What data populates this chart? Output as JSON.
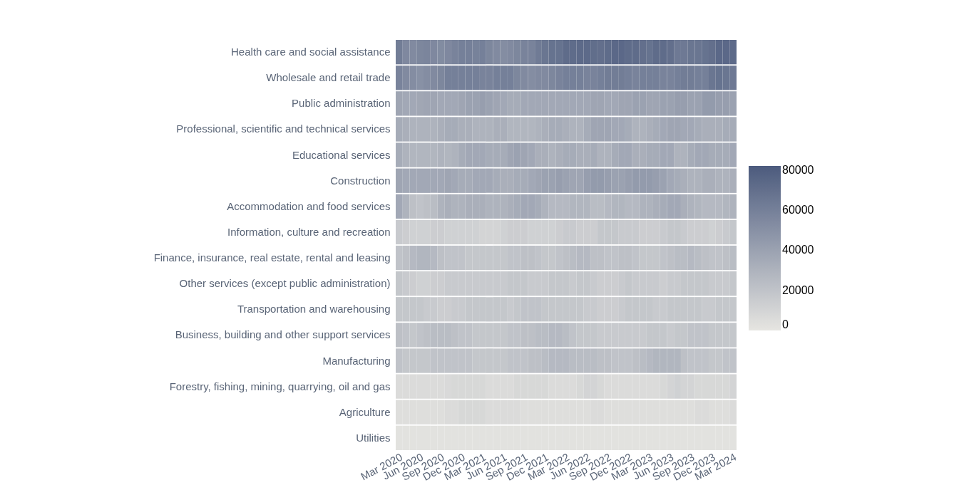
{
  "chart_data": {
    "type": "heatmap",
    "categories": [
      "Mar 2020",
      null,
      null,
      "Jun 2020",
      null,
      null,
      "Sep 2020",
      null,
      null,
      "Dec 2020",
      null,
      null,
      "Mar 2021",
      null,
      null,
      "Jun 2021",
      null,
      null,
      "Sep 2021",
      null,
      null,
      "Dec 2021",
      null,
      null,
      "Mar 2022",
      null,
      null,
      "Jun 2022",
      null,
      null,
      "Sep 2022",
      null,
      null,
      "Dec 2022",
      null,
      null,
      "Mar 2023",
      null,
      null,
      "Jun 2023",
      null,
      null,
      "Sep 2023",
      null,
      null,
      "Dec 2023",
      null,
      null,
      "Mar 2024"
    ],
    "y_categories": [
      "Health care and social assistance",
      "Wholesale and retail trade",
      "Public administration",
      "Professional, scientific and technical services",
      "Educational services",
      "Construction",
      "Accommodation and food services",
      "Information, culture and recreation",
      "Finance, insurance, real estate, rental and leasing",
      "Other services (except public administration)",
      "Transportation and warehousing",
      "Business, building and other support services",
      "Manufacturing",
      "Forestry, fishing, mining, quarrying, oil and gas",
      "Agriculture",
      "Utilities"
    ],
    "cells": [
      [
        62000,
        55000,
        54000,
        56000,
        57000,
        55000,
        53000,
        55000,
        58000,
        60000,
        60000,
        59000,
        60000,
        56000,
        54000,
        52000,
        54000,
        56000,
        58000,
        58000,
        63000,
        66000,
        68000,
        68000,
        72000,
        72000,
        73000,
        73000,
        71000,
        70000,
        72000,
        74000,
        74000,
        72000,
        72000,
        70000,
        68000,
        72000,
        72000,
        70000,
        64000,
        64000,
        66000,
        66000,
        68000,
        70000,
        74000,
        74000,
        73000
      ],
      [
        58000,
        54000,
        52000,
        50000,
        52000,
        54000,
        56000,
        60000,
        60000,
        60000,
        60000,
        60000,
        58000,
        58000,
        60000,
        60000,
        60000,
        56000,
        54000,
        52000,
        54000,
        54000,
        56000,
        58000,
        60000,
        60000,
        60000,
        58000,
        58000,
        60000,
        62000,
        62000,
        62000,
        60000,
        58000,
        60000,
        60000,
        60000,
        58000,
        58000,
        60000,
        62000,
        62000,
        60000,
        60000,
        66000,
        68000,
        66000,
        64000
      ],
      [
        38000,
        36000,
        36000,
        37000,
        38000,
        38000,
        36000,
        36000,
        36000,
        38000,
        40000,
        40000,
        42000,
        40000,
        38000,
        36000,
        34000,
        34000,
        36000,
        36000,
        36000,
        36000,
        36000,
        36000,
        36000,
        36000,
        36000,
        36000,
        38000,
        38000,
        36000,
        36000,
        38000,
        38000,
        40000,
        40000,
        38000,
        38000,
        40000,
        40000,
        42000,
        42000,
        40000,
        40000,
        44000,
        44000,
        42000,
        42000,
        40000
      ],
      [
        34000,
        32000,
        30000,
        30000,
        30000,
        30000,
        32000,
        34000,
        34000,
        32000,
        32000,
        30000,
        30000,
        30000,
        32000,
        32000,
        28000,
        28000,
        28000,
        28000,
        30000,
        32000,
        34000,
        34000,
        32000,
        30000,
        30000,
        34000,
        38000,
        38000,
        38000,
        36000,
        36000,
        34000,
        30000,
        30000,
        32000,
        34000,
        36000,
        38000,
        38000,
        36000,
        36000,
        34000,
        32000,
        32000,
        32000,
        34000,
        34000
      ],
      [
        34000,
        30000,
        28000,
        28000,
        28000,
        28000,
        30000,
        28000,
        30000,
        34000,
        36000,
        36000,
        36000,
        34000,
        34000,
        34000,
        38000,
        40000,
        38000,
        36000,
        32000,
        32000,
        30000,
        32000,
        34000,
        34000,
        32000,
        32000,
        34000,
        30000,
        30000,
        34000,
        36000,
        36000,
        32000,
        32000,
        34000,
        34000,
        36000,
        36000,
        30000,
        30000,
        34000,
        36000,
        36000,
        34000,
        34000,
        34000,
        36000
      ],
      [
        38000,
        36000,
        36000,
        36000,
        36000,
        36000,
        36000,
        38000,
        36000,
        34000,
        34000,
        36000,
        36000,
        36000,
        34000,
        32000,
        32000,
        34000,
        34000,
        36000,
        38000,
        40000,
        40000,
        42000,
        40000,
        38000,
        38000,
        42000,
        44000,
        44000,
        42000,
        40000,
        40000,
        42000,
        44000,
        44000,
        44000,
        42000,
        40000,
        36000,
        34000,
        32000,
        30000,
        30000,
        32000,
        32000,
        30000,
        30000,
        32000
      ],
      [
        36000,
        30000,
        22000,
        20000,
        22000,
        24000,
        30000,
        32000,
        30000,
        30000,
        32000,
        32000,
        32000,
        30000,
        30000,
        30000,
        32000,
        34000,
        36000,
        36000,
        34000,
        30000,
        26000,
        26000,
        26000,
        28000,
        28000,
        28000,
        24000,
        24000,
        26000,
        28000,
        28000,
        26000,
        26000,
        30000,
        30000,
        32000,
        34000,
        36000,
        36000,
        32000,
        30000,
        28000,
        26000,
        26000,
        26000,
        28000,
        30000
      ],
      [
        16000,
        14000,
        12000,
        12000,
        12000,
        14000,
        14000,
        12000,
        12000,
        12000,
        12000,
        12000,
        10000,
        10000,
        10000,
        12000,
        14000,
        14000,
        14000,
        12000,
        12000,
        12000,
        12000,
        14000,
        16000,
        16000,
        14000,
        14000,
        14000,
        18000,
        18000,
        18000,
        16000,
        16000,
        16000,
        14000,
        14000,
        14000,
        16000,
        18000,
        18000,
        16000,
        14000,
        14000,
        14000,
        12000,
        14000,
        16000,
        18000
      ],
      [
        20000,
        22000,
        26000,
        28000,
        28000,
        26000,
        22000,
        20000,
        20000,
        20000,
        18000,
        18000,
        18000,
        18000,
        18000,
        18000,
        20000,
        20000,
        22000,
        22000,
        20000,
        18000,
        18000,
        20000,
        22000,
        24000,
        26000,
        26000,
        22000,
        22000,
        20000,
        20000,
        22000,
        22000,
        20000,
        18000,
        18000,
        18000,
        20000,
        22000,
        24000,
        24000,
        26000,
        24000,
        22000,
        20000,
        20000,
        22000,
        24000
      ],
      [
        18000,
        16000,
        14000,
        12000,
        12000,
        14000,
        14000,
        16000,
        16000,
        16000,
        16000,
        16000,
        16000,
        16000,
        16000,
        16000,
        18000,
        18000,
        18000,
        16000,
        16000,
        16000,
        18000,
        18000,
        18000,
        16000,
        18000,
        18000,
        16000,
        14000,
        14000,
        14000,
        16000,
        18000,
        16000,
        16000,
        16000,
        16000,
        14000,
        16000,
        16000,
        18000,
        18000,
        18000,
        18000,
        16000,
        16000,
        16000,
        18000
      ],
      [
        18000,
        18000,
        18000,
        18000,
        16000,
        16000,
        14000,
        14000,
        16000,
        16000,
        18000,
        18000,
        18000,
        18000,
        18000,
        18000,
        16000,
        18000,
        20000,
        20000,
        20000,
        18000,
        18000,
        18000,
        18000,
        18000,
        18000,
        16000,
        16000,
        14000,
        14000,
        14000,
        16000,
        18000,
        18000,
        18000,
        18000,
        16000,
        16000,
        18000,
        18000,
        18000,
        18000,
        18000,
        16000,
        16000,
        18000,
        18000,
        18000
      ],
      [
        22000,
        20000,
        18000,
        20000,
        22000,
        24000,
        24000,
        24000,
        22000,
        20000,
        20000,
        18000,
        18000,
        18000,
        18000,
        18000,
        20000,
        20000,
        22000,
        22000,
        24000,
        24000,
        26000,
        26000,
        24000,
        20000,
        18000,
        18000,
        18000,
        16000,
        16000,
        16000,
        16000,
        16000,
        16000,
        16000,
        18000,
        18000,
        18000,
        16000,
        18000,
        18000,
        20000,
        20000,
        20000,
        18000,
        18000,
        18000,
        18000
      ],
      [
        20000,
        18000,
        18000,
        18000,
        18000,
        20000,
        20000,
        20000,
        20000,
        20000,
        20000,
        18000,
        18000,
        18000,
        18000,
        18000,
        20000,
        20000,
        20000,
        22000,
        22000,
        24000,
        26000,
        26000,
        26000,
        24000,
        24000,
        24000,
        24000,
        22000,
        22000,
        20000,
        20000,
        20000,
        22000,
        24000,
        26000,
        28000,
        28000,
        28000,
        28000,
        22000,
        20000,
        20000,
        20000,
        18000,
        18000,
        20000,
        20000
      ],
      [
        6000,
        6000,
        6000,
        6000,
        6000,
        6000,
        6000,
        7000,
        8000,
        8000,
        8000,
        8000,
        8000,
        6000,
        6000,
        6000,
        6000,
        8000,
        8000,
        8000,
        8000,
        8000,
        6000,
        6000,
        6000,
        6000,
        8000,
        10000,
        10000,
        8000,
        6000,
        6000,
        6000,
        6000,
        6000,
        6000,
        6000,
        6000,
        8000,
        10000,
        12000,
        10000,
        10000,
        8000,
        8000,
        8000,
        8000,
        8000,
        10000
      ],
      [
        4000,
        4000,
        4000,
        4000,
        4000,
        4000,
        4000,
        6000,
        6000,
        8000,
        8000,
        8000,
        8000,
        6000,
        6000,
        6000,
        6000,
        6000,
        4000,
        4000,
        4000,
        4000,
        4000,
        4000,
        4000,
        4000,
        4000,
        4000,
        6000,
        6000,
        4000,
        4000,
        4000,
        4000,
        4000,
        4000,
        4000,
        4000,
        4000,
        4000,
        4000,
        4000,
        4000,
        6000,
        6000,
        4000,
        4000,
        4000,
        6000
      ],
      [
        2000,
        2000,
        2000,
        2000,
        2000,
        2000,
        2000,
        2000,
        2000,
        2000,
        2000,
        2000,
        2000,
        2000,
        2000,
        2000,
        2000,
        2000,
        2000,
        2000,
        2000,
        2000,
        2000,
        2000,
        2000,
        2000,
        2000,
        2000,
        2000,
        2000,
        2000,
        2000,
        2000,
        2000,
        2000,
        2000,
        2000,
        2000,
        2000,
        2000,
        2000,
        2000,
        2000,
        2000,
        2000,
        2000,
        2000,
        2000,
        2000
      ]
    ],
    "clim": [
      0,
      82000
    ],
    "cticks": [
      0,
      20000,
      40000,
      60000,
      80000
    ]
  }
}
